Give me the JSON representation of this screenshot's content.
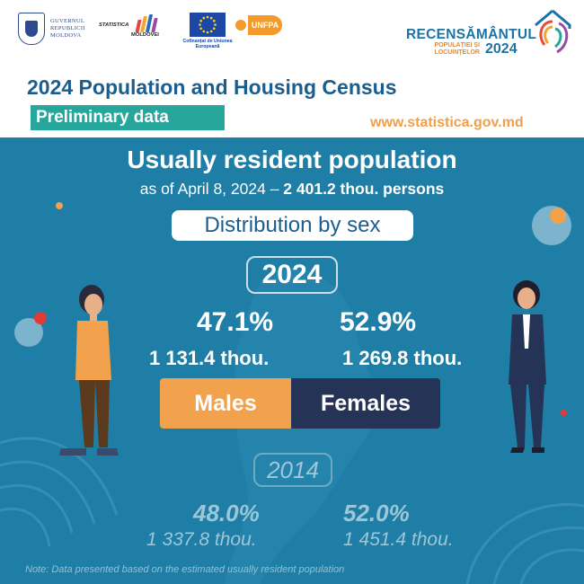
{
  "header": {
    "gov_logo_lines": [
      "GUVERNUL",
      "REPUBLICII",
      "MOLDOVA"
    ],
    "stat_logo": {
      "line1": "STATISTICA",
      "line2": "MOLDOVEI"
    },
    "eu_logo_text": "Cofinanțat de Uniunea Europeană",
    "unfpa_logo": "UNFPA",
    "census_logo": {
      "title": "RECENSĂMÂNTUL",
      "subtitle": "POPULAȚIEI ȘI LOCUINȚELOR",
      "year": "2024"
    },
    "main_title": "2024 Population and Housing Census",
    "badge": "Preliminary data",
    "website": "www.statistica.gov.md"
  },
  "content": {
    "title": "Usually resident population",
    "subtitle_prefix": "as of April 8, 2024 – ",
    "subtitle_value": "2 401.2 thou. persons",
    "section_label": "Distribution by sex",
    "current": {
      "year": "2024",
      "male_pct": "47.1%",
      "male_abs": "1 131.4 thou.",
      "female_pct": "52.9%",
      "female_abs": "1 269.8 thou.",
      "male_label": "Males",
      "female_label": "Females"
    },
    "previous": {
      "year": "2014",
      "male_pct": "48.0%",
      "male_abs": "1 337.8 thou.",
      "female_pct": "52.0%",
      "female_abs": "1 451.4 thou."
    },
    "note": "Note: Data presented based on the estimated usually resident population"
  },
  "colors": {
    "header_bg": "#ffffff",
    "body_bg": "#1f7ea6",
    "title_blue": "#1b5e8e",
    "badge_teal": "#27a79b",
    "website_orange": "#f0a04a",
    "male_orange": "#f2a24c",
    "female_navy": "#253456"
  },
  "icons": [
    "government-seal-icon",
    "statistics-bars-icon",
    "eu-flag-icon",
    "unfpa-icon",
    "census-house-logo-icon",
    "man-figure-icon",
    "woman-figure-icon"
  ]
}
